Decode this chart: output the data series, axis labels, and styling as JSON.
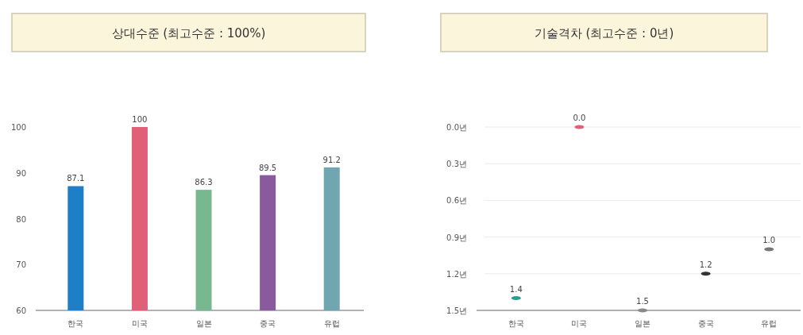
{
  "chart_data": [
    {
      "type": "bar",
      "title": "상대수준 (최고수준 : 100%)",
      "categories": [
        "한국",
        "미국",
        "일본",
        "중국",
        "유럽"
      ],
      "values": [
        87.1,
        100,
        86.3,
        89.5,
        91.2
      ],
      "colors": [
        "#1f7ec8",
        "#e0607a",
        "#78b890",
        "#8a5a9e",
        "#6fa6b0"
      ],
      "ylim": [
        60,
        100
      ],
      "yticks": [
        60,
        70,
        80,
        90,
        100
      ],
      "data_labels": true,
      "grid": false
    },
    {
      "type": "scatter",
      "title": "기술격차 (최고수준 : 0년)",
      "categories": [
        "한국",
        "미국",
        "일본",
        "중국",
        "유럽"
      ],
      "values": [
        1.4,
        0.0,
        1.5,
        1.2,
        1.0
      ],
      "colors": [
        "#2a9d8f",
        "#e0607a",
        "#8a8a8a",
        "#333333",
        "#777777"
      ],
      "ylim": [
        1.5,
        0
      ],
      "yticks": [
        {
          "value": 0,
          "label": "0.0년"
        },
        {
          "value": 0.3,
          "label": "0.3년"
        },
        {
          "value": 0.6,
          "label": "0.6년"
        },
        {
          "value": 0.9,
          "label": "0.9년"
        },
        {
          "value": 1.2,
          "label": "1.2년"
        },
        {
          "value": 1.5,
          "label": "1.5년"
        }
      ],
      "value_labels": [
        "1.4",
        "0.0",
        "1.5",
        "1.2",
        "1.0"
      ],
      "grid": "y"
    }
  ]
}
